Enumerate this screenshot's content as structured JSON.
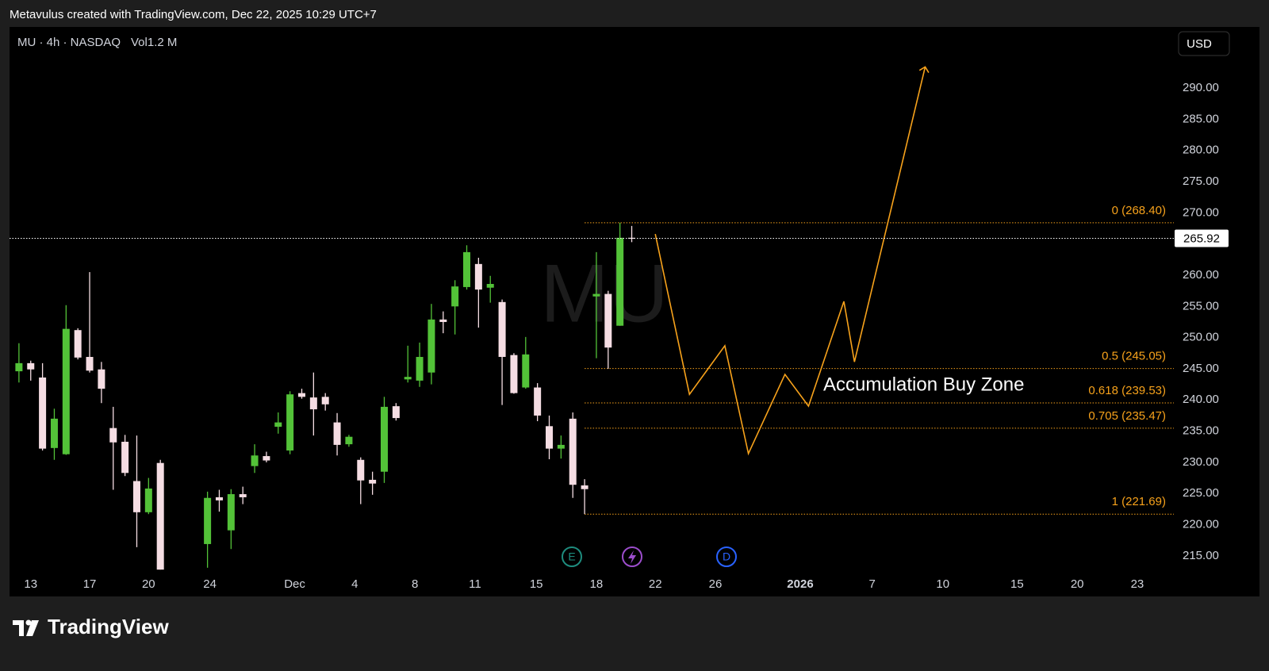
{
  "header": "Metavulus created with TradingView.com, Dec 22, 2025 10:29 UTC+7",
  "footer_logo": "TradingView",
  "currency_button": "USD",
  "events": [
    {
      "label": "E"
    },
    {
      "label": "D"
    }
  ],
  "chart_data": {
    "type": "candlestick",
    "symbol_info": "MU · 4h · NASDAQ",
    "volume_label": "Vol1.2 M",
    "watermark": "MU",
    "up_color": "#53c238",
    "down_color": "#f5dde3",
    "grid": false,
    "x": [
      -1,
      0,
      1,
      2,
      3,
      4,
      5,
      6,
      7,
      8,
      9,
      10,
      11,
      15,
      16,
      17,
      18,
      19,
      20,
      21,
      22,
      23,
      24,
      25,
      26,
      27,
      28,
      29,
      30,
      31,
      32,
      33,
      34,
      35,
      36,
      37,
      38,
      39,
      40,
      41,
      42,
      43,
      44,
      45,
      46,
      47,
      48,
      49,
      50,
      51
    ],
    "open": [
      244.6,
      245.9,
      243.6,
      232.3,
      231.3,
      251.2,
      246.9,
      244.9,
      235.5,
      233.3,
      227.0,
      222.0,
      229.9,
      216.9,
      224.4,
      219.1,
      224.9,
      229.4,
      231.0,
      235.7,
      231.9,
      241.1,
      240.4,
      240.5,
      236.4,
      232.9,
      230.4,
      227.2,
      228.5,
      239.0,
      243.3,
      243.1,
      244.4,
      252.9,
      255.0,
      258.1,
      261.8,
      258.0,
      255.7,
      247.2,
      242.0,
      242.0,
      235.8,
      232.2,
      237.0,
      226.3,
      256.6,
      257.0,
      251.9,
      266.0
    ],
    "high": [
      249.1,
      246.3,
      245.9,
      238.6,
      255.2,
      251.5,
      260.5,
      246.1,
      238.9,
      234.4,
      234.3,
      227.5,
      230.4,
      225.3,
      225.6,
      225.7,
      226.1,
      232.9,
      231.7,
      238.0,
      241.4,
      241.8,
      244.4,
      241.1,
      237.9,
      234.4,
      230.8,
      228.5,
      240.5,
      239.5,
      248.7,
      249.2,
      255.4,
      254.2,
      259.2,
      264.8,
      262.8,
      259.9,
      256.1,
      247.5,
      250.1,
      242.7,
      237.5,
      234.3,
      238.0,
      227.3,
      263.7,
      257.5,
      268.4,
      267.9
    ],
    "low": [
      242.8,
      243.1,
      231.9,
      230.4,
      231.2,
      246.5,
      244.4,
      239.5,
      225.6,
      227.8,
      216.4,
      221.7,
      212.8,
      213.1,
      222.1,
      216.1,
      223.3,
      228.3,
      230.0,
      234.6,
      231.3,
      240.2,
      234.3,
      238.3,
      231.1,
      232.5,
      223.3,
      224.8,
      226.7,
      236.7,
      242.8,
      242.1,
      242.5,
      250.7,
      250.5,
      257.7,
      251.6,
      255.6,
      239.2,
      241.0,
      241.8,
      236.6,
      230.5,
      230.6,
      224.3,
      221.7,
      246.7,
      245.0,
      251.9,
      265.3
    ],
    "close": [
      245.9,
      244.9,
      232.2,
      237.0,
      251.4,
      246.8,
      244.7,
      241.8,
      233.2,
      228.3,
      222.0,
      225.8,
      212.8,
      224.3,
      223.9,
      224.9,
      224.4,
      231.1,
      230.3,
      236.4,
      240.9,
      240.5,
      238.5,
      239.3,
      232.8,
      234.1,
      227.1,
      226.6,
      238.9,
      237.1,
      243.7,
      246.9,
      252.9,
      252.5,
      258.2,
      263.7,
      257.7,
      258.6,
      246.9,
      241.1,
      247.3,
      237.5,
      232.2,
      232.8,
      226.4,
      225.7,
      257.0,
      248.4,
      266.0,
      265.92
    ],
    "xlim": [
      -1.8,
      97
    ],
    "xticks": [
      {
        "value": 0,
        "label": "13"
      },
      {
        "value": 5,
        "label": "17"
      },
      {
        "value": 10,
        "label": "20"
      },
      {
        "value": 15.2,
        "label": "24"
      },
      {
        "value": 22.4,
        "label": "Dec"
      },
      {
        "value": 27.5,
        "label": "4"
      },
      {
        "value": 32.6,
        "label": "8"
      },
      {
        "value": 37.7,
        "label": "11"
      },
      {
        "value": 42.9,
        "label": "15"
      },
      {
        "value": 48,
        "label": "18"
      },
      {
        "value": 53,
        "label": "22"
      },
      {
        "value": 58.1,
        "label": "26"
      },
      {
        "value": 65.3,
        "label": "2026"
      },
      {
        "value": 71.4,
        "label": "7"
      },
      {
        "value": 77.4,
        "label": "10"
      },
      {
        "value": 83.7,
        "label": "15"
      },
      {
        "value": 88.8,
        "label": "20"
      },
      {
        "value": 93.9,
        "label": "23"
      }
    ],
    "ylim": [
      208.5,
      299.8
    ],
    "yticks": [
      {
        "value": 215,
        "label": "215.00"
      },
      {
        "value": 220,
        "label": "220.00"
      },
      {
        "value": 225,
        "label": "225.00"
      },
      {
        "value": 230,
        "label": "230.00"
      },
      {
        "value": 235,
        "label": "235.00"
      },
      {
        "value": 240,
        "label": "240.00"
      },
      {
        "value": 245,
        "label": "245.00"
      },
      {
        "value": 250,
        "label": "250.00"
      },
      {
        "value": 255,
        "label": "255.00"
      },
      {
        "value": 260,
        "label": "260.00"
      },
      {
        "value": 265,
        "label": "265.00"
      },
      {
        "value": 270,
        "label": "270.00"
      },
      {
        "value": 275,
        "label": "275.00"
      },
      {
        "value": 280,
        "label": "280.00"
      },
      {
        "value": 285,
        "label": "285.00"
      },
      {
        "value": 290,
        "label": "290.00"
      }
    ],
    "last_price": 265.92,
    "fib_color": "#f7a21b",
    "fib_start_x": 47,
    "fib_levels": [
      {
        "value": 268.4,
        "label": "0 (268.40)"
      },
      {
        "value": 245.05,
        "label": "0.5 (245.05)"
      },
      {
        "value": 239.53,
        "label": "0.618 (239.53)"
      },
      {
        "value": 235.47,
        "label": "0.705 (235.47)"
      },
      {
        "value": 221.69,
        "label": "1 (221.69)"
      }
    ],
    "projection": {
      "color": "#f7a21b",
      "x": [
        53.0,
        55.9,
        58.9,
        60.9,
        64.0,
        66.0,
        69.0,
        69.9,
        75.9
      ],
      "values": [
        266.6,
        240.9,
        248.7,
        231.4,
        244.1,
        239.0,
        255.8,
        246.1,
        293.4
      ]
    },
    "annotation": "Accumulation Buy Zone"
  }
}
